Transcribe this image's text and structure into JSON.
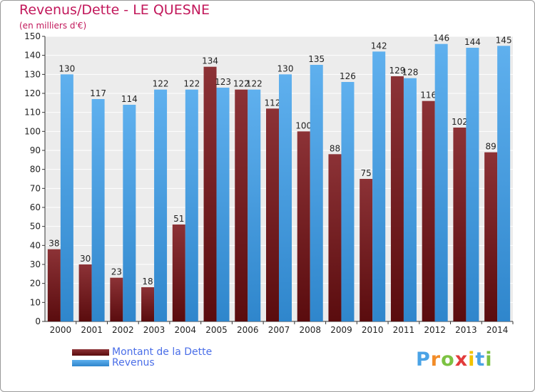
{
  "chart_data": {
    "type": "bar",
    "title": "Revenus/Dette - LE QUESNE",
    "subtitle": "(en milliers d'€)",
    "xlabel": "",
    "ylabel": "",
    "categories": [
      "2000",
      "2001",
      "2002",
      "2003",
      "2004",
      "2005",
      "2006",
      "2007",
      "2008",
      "2009",
      "2010",
      "2011",
      "2012",
      "2013",
      "2014"
    ],
    "series": [
      {
        "name": "Montant de la Dette",
        "color": "#7a1f22",
        "values": [
          38,
          30,
          23,
          18,
          51,
          134,
          122,
          112,
          100,
          88,
          75,
          129,
          116,
          102,
          89
        ]
      },
      {
        "name": "Revenus",
        "color": "#4aa3e6",
        "values": [
          130,
          117,
          114,
          122,
          122,
          123,
          122,
          130,
          135,
          126,
          142,
          128,
          146,
          144,
          145
        ]
      }
    ],
    "ylim": [
      0,
      150
    ],
    "yticks": [
      0,
      10,
      20,
      30,
      40,
      50,
      60,
      70,
      80,
      90,
      100,
      110,
      120,
      130,
      140,
      150
    ],
    "grid": true,
    "legend_position": "bottom-left",
    "background_color": "#ececec",
    "grid_color": "#ffffff"
  },
  "brand": {
    "letters": [
      "P",
      "r",
      "o",
      "x",
      "i",
      "t",
      "i"
    ],
    "colors": [
      "#4aa3e6",
      "#f28c28",
      "#7cc242",
      "#e23b3b",
      "#f2c200",
      "#4aa3e6",
      "#7cc242"
    ]
  }
}
